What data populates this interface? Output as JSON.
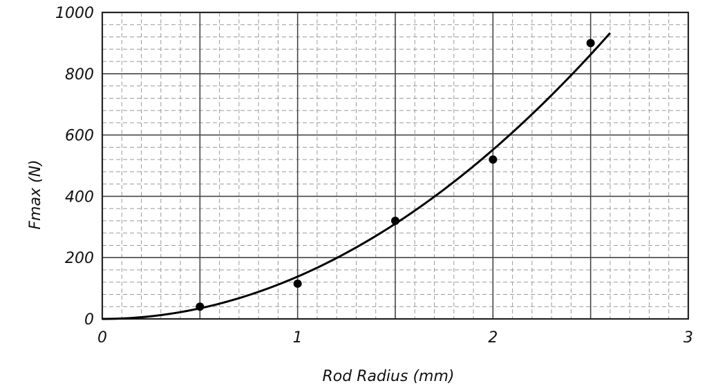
{
  "chart_data": {
    "type": "scatter",
    "title": "",
    "xlabel": "Rod Radius (mm)",
    "ylabel": "Fmax (N)",
    "xlim": [
      0,
      3
    ],
    "ylim": [
      0,
      1000
    ],
    "x_ticks": [
      "0",
      "1",
      "2",
      "3"
    ],
    "y_ticks": [
      "0",
      "200",
      "400",
      "600",
      "800",
      "1000"
    ],
    "grid": true,
    "series": [
      {
        "x": [
          0.5,
          1.0,
          1.5,
          2.0,
          2.5
        ],
        "y": [
          40,
          115,
          320,
          520,
          900
        ]
      }
    ],
    "fit_curve": {
      "form": "quadratic",
      "coefficient": 138,
      "x_range": [
        0,
        2.6
      ]
    }
  }
}
